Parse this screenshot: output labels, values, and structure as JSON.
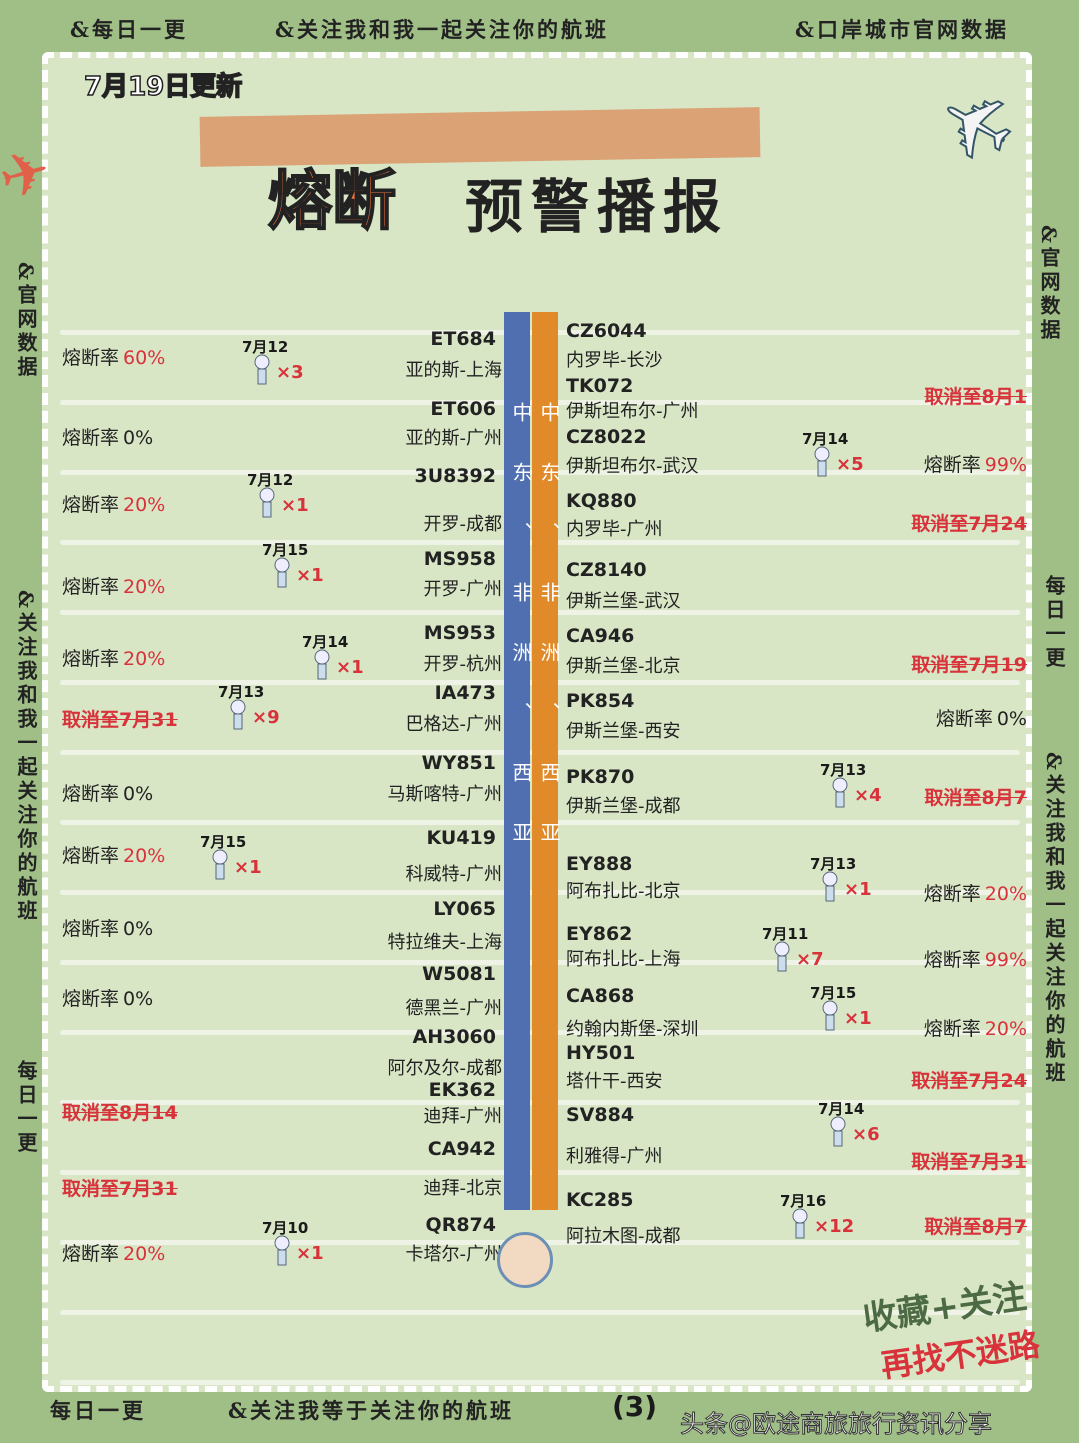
{
  "header": {
    "top_left": "&每日一更",
    "top_center": "&关注我和我一起关注你的航班",
    "top_right": "&口岸城市官网数据",
    "updated": "7月19日更新",
    "title_highlight": "熔断",
    "title_rest": "预警播报"
  },
  "side": {
    "left_top": "&官网数据",
    "left_mid": "&关注我和我一起关注你的航班",
    "left_bottom": "每日一更",
    "right_top": "&官网数据",
    "right_mid": "每日一更",
    "right_bottom": "&关注我和我一起关注你的航班"
  },
  "region_bars": {
    "blue_label": "中东、非洲、西亚",
    "orange_label": "中东、非洲、西亚",
    "blue": "#4f6fb0",
    "orange": "#e08a2a"
  },
  "left_flights": [
    {
      "code": "ET684",
      "route": "亚的斯-上海",
      "status_label": "熔断率",
      "status_value": "60%",
      "type": "rate-red",
      "date": "7月12",
      "count": "×3"
    },
    {
      "code": "ET606",
      "route": "亚的斯-广州",
      "status_label": "熔断率",
      "status_value": "0%",
      "type": "rate"
    },
    {
      "code": "3U8392",
      "route": "开罗-成都",
      "status_label": "熔断率",
      "status_value": "20%",
      "type": "rate-red",
      "date": "7月12",
      "count": "×1"
    },
    {
      "code": "MS958",
      "route": "开罗-广州",
      "status_label": "熔断率",
      "status_value": "20%",
      "type": "rate-red",
      "date": "7月15",
      "count": "×1"
    },
    {
      "code": "MS953",
      "route": "开罗-杭州",
      "status_label": "熔断率",
      "status_value": "20%",
      "type": "rate-red",
      "date": "7月14",
      "count": "×1"
    },
    {
      "code": "IA473",
      "route": "巴格达-广州",
      "status_label": "",
      "status_value": "取消至7月31",
      "type": "cancel",
      "date": "7月13",
      "count": "×9"
    },
    {
      "code": "WY851",
      "route": "马斯喀特-广州",
      "status_label": "熔断率",
      "status_value": "0%",
      "type": "rate"
    },
    {
      "code": "KU419",
      "route": "科威特-广州",
      "status_label": "熔断率",
      "status_value": "20%",
      "type": "rate-red",
      "date": "7月15",
      "count": "×1"
    },
    {
      "code": "LY065",
      "route": "特拉维夫-上海",
      "status_label": "熔断率",
      "status_value": "0%",
      "type": "rate"
    },
    {
      "code": "W5081",
      "route": "德黑兰-广州",
      "status_label": "熔断率",
      "status_value": "0%",
      "type": "rate"
    },
    {
      "code": "AH3060",
      "route": "阿尔及尔-成都",
      "status_label": "",
      "status_value": "",
      "type": "none"
    },
    {
      "code": "EK362",
      "route": "迪拜-广州",
      "status_label": "",
      "status_value": "取消至8月14",
      "type": "cancel"
    },
    {
      "code": "CA942",
      "route": "迪拜-北京",
      "status_label": "",
      "status_value": "取消至7月31",
      "type": "cancel"
    },
    {
      "code": "QR874",
      "route": "卡塔尔-广州",
      "status_label": "熔断率",
      "status_value": "20%",
      "type": "rate-red",
      "date": "7月10",
      "count": "×1"
    }
  ],
  "right_flights": [
    {
      "code": "CZ6044",
      "route": "内罗毕-长沙",
      "status_label": "",
      "status_value": "",
      "type": "none"
    },
    {
      "code": "TK072",
      "route": "伊斯坦布尔-广州",
      "status_label": "",
      "status_value": "取消至8月1",
      "type": "cancel"
    },
    {
      "code": "CZ8022",
      "route": "伊斯坦布尔-武汉",
      "status_label": "熔断率",
      "status_value": "99%",
      "type": "rate-red",
      "date": "7月14",
      "count": "×5"
    },
    {
      "code": "KQ880",
      "route": "内罗毕-广州",
      "status_label": "",
      "status_value": "取消至7月24",
      "type": "cancel"
    },
    {
      "code": "CZ8140",
      "route": "伊斯兰堡-武汉",
      "status_label": "",
      "status_value": "",
      "type": "none"
    },
    {
      "code": "CA946",
      "route": "伊斯兰堡-北京",
      "status_label": "",
      "status_value": "取消至7月19",
      "type": "cancel"
    },
    {
      "code": "PK854",
      "route": "伊斯兰堡-西安",
      "status_label": "熔断率",
      "status_value": "0%",
      "type": "rate"
    },
    {
      "code": "PK870",
      "route": "伊斯兰堡-成都",
      "status_label": "",
      "status_value": "取消至8月7",
      "type": "cancel",
      "date": "7月13",
      "count": "×4"
    },
    {
      "code": "EY888",
      "route": "阿布扎比-北京",
      "status_label": "熔断率",
      "status_value": "20%",
      "type": "rate-red",
      "date": "7月13",
      "count": "×1"
    },
    {
      "code": "EY862",
      "route": "阿布扎比-上海",
      "status_label": "熔断率",
      "status_value": "99%",
      "type": "rate-red",
      "date": "7月11",
      "count": "×7"
    },
    {
      "code": "CA868",
      "route": "约翰内斯堡-深圳",
      "status_label": "熔断率",
      "status_value": "20%",
      "type": "rate-red",
      "date": "7月15",
      "count": "×1"
    },
    {
      "code": "HY501",
      "route": "塔什干-西安",
      "status_label": "",
      "status_value": "取消至7月24",
      "type": "cancel"
    },
    {
      "code": "SV884",
      "route": "利雅得-广州",
      "status_label": "",
      "status_value": "取消至7月31",
      "type": "cancel",
      "date": "7月14",
      "count": "×6"
    },
    {
      "code": "KC285",
      "route": "阿拉木图-成都",
      "status_label": "",
      "status_value": "取消至8月7",
      "type": "cancel",
      "date": "7月16",
      "count": "×12"
    }
  ],
  "footer": {
    "left": "每日一更",
    "center": "&关注我等于关注你的航班",
    "page": "(3)",
    "source": "头条@欧途商旅旅行资讯分享",
    "stamp_top": "收藏+关注",
    "stamp_bottom": "再找不迷路"
  }
}
